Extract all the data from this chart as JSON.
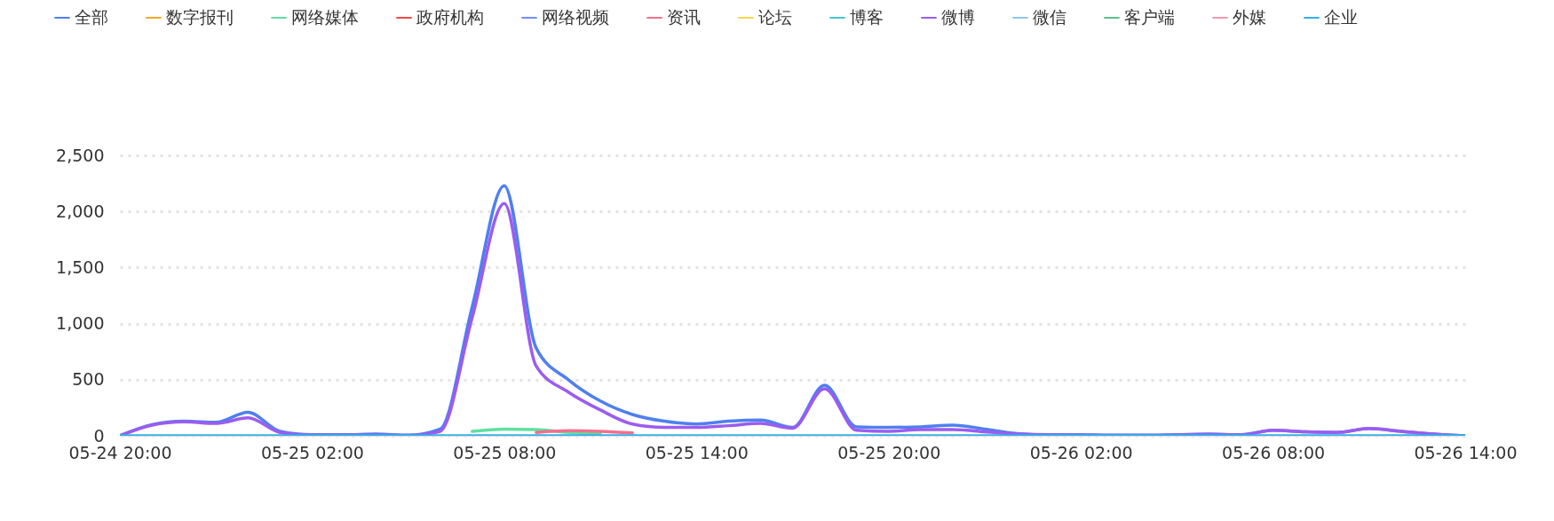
{
  "chart_data": {
    "type": "line",
    "categories": [
      "05-24 20:00",
      null,
      null,
      null,
      null,
      null,
      "05-25 02:00",
      null,
      null,
      null,
      null,
      null,
      "05-25 08:00",
      null,
      null,
      null,
      null,
      null,
      "05-25 14:00",
      null,
      null,
      null,
      null,
      null,
      "05-25 20:00",
      null,
      null,
      null,
      null,
      null,
      "05-26 02:00",
      null,
      null,
      null,
      null,
      null,
      "05-26 08:00",
      null,
      null,
      null,
      null,
      null,
      "05-26 14:00"
    ],
    "ylim": [
      0,
      2500
    ],
    "yticks": [
      0,
      500,
      {
        "value": 1000,
        "label": "1,000"
      },
      {
        "value": 1500,
        "label": "1,500"
      },
      {
        "value": 2000,
        "label": "2,000"
      },
      {
        "value": 2500,
        "label": "2,500"
      }
    ],
    "grid": "y",
    "legend": "top",
    "marker": "none",
    "line_style": "solid",
    "series": [
      {
        "name": "全部",
        "color": "#4f7ff0",
        "values": [
          0,
          100,
          130,
          120,
          210,
          40,
          10,
          10,
          15,
          5,
          60,
          1150,
          2230,
          780,
          500,
          310,
          190,
          130,
          105,
          130,
          140,
          75,
          450,
          80,
          75,
          80,
          95,
          60,
          20,
          10,
          10,
          5,
          5,
          10,
          15,
          10,
          50,
          35,
          30,
          65,
          40,
          15,
          0
        ]
      },
      {
        "name": "数字报刊",
        "color": "#f5a623",
        "values": [
          null,
          null,
          null,
          null,
          null,
          null,
          null,
          null,
          null,
          null,
          null,
          null,
          null,
          null,
          null,
          null,
          null,
          null,
          null,
          null,
          null,
          null,
          null,
          null,
          null,
          null,
          null,
          null,
          null,
          null,
          null,
          null,
          null,
          null,
          null,
          null,
          null,
          null,
          null,
          null,
          null,
          null,
          null
        ]
      },
      {
        "name": "网络媒体",
        "color": "#5ee0a0",
        "values": [
          null,
          null,
          null,
          null,
          null,
          null,
          null,
          null,
          null,
          null,
          null,
          40,
          60,
          55,
          30,
          20,
          null,
          null,
          null,
          null,
          null,
          null,
          null,
          null,
          null,
          null,
          null,
          null,
          null,
          null,
          null,
          null,
          null,
          null,
          null,
          null,
          null,
          null,
          null,
          null,
          null,
          null,
          null
        ]
      },
      {
        "name": "政府机构",
        "color": "#f04848",
        "values": [
          null,
          null,
          null,
          null,
          null,
          null,
          null,
          null,
          null,
          null,
          null,
          null,
          null,
          null,
          null,
          null,
          null,
          null,
          null,
          null,
          null,
          null,
          null,
          null,
          null,
          null,
          null,
          null,
          null,
          null,
          null,
          null,
          null,
          null,
          null,
          null,
          null,
          null,
          null,
          null,
          null,
          null,
          null
        ]
      },
      {
        "name": "网络视频",
        "color": "#6f8ff6",
        "values": [
          null,
          null,
          null,
          null,
          null,
          null,
          null,
          null,
          null,
          null,
          null,
          null,
          null,
          null,
          null,
          null,
          null,
          null,
          null,
          null,
          null,
          null,
          null,
          null,
          null,
          null,
          null,
          null,
          null,
          null,
          null,
          null,
          null,
          null,
          null,
          null,
          null,
          null,
          null,
          null,
          null,
          null,
          null
        ]
      },
      {
        "name": "资讯",
        "color": "#f06f8f",
        "values": [
          null,
          null,
          null,
          null,
          null,
          null,
          null,
          null,
          null,
          null,
          null,
          null,
          null,
          30,
          45,
          40,
          25,
          null,
          null,
          null,
          null,
          null,
          null,
          null,
          null,
          null,
          null,
          null,
          null,
          null,
          null,
          null,
          null,
          null,
          null,
          null,
          null,
          null,
          null,
          null,
          null,
          null,
          null
        ]
      },
      {
        "name": "论坛",
        "color": "#f8d84a",
        "values": [
          null,
          null,
          null,
          null,
          null,
          null,
          null,
          null,
          null,
          null,
          null,
          null,
          null,
          null,
          null,
          null,
          null,
          null,
          null,
          null,
          null,
          null,
          null,
          null,
          null,
          null,
          null,
          null,
          null,
          null,
          null,
          null,
          null,
          null,
          null,
          null,
          null,
          null,
          null,
          null,
          null,
          null,
          null
        ]
      },
      {
        "name": "博客",
        "color": "#40c8c8",
        "values": [
          null,
          null,
          null,
          null,
          null,
          null,
          null,
          null,
          null,
          null,
          null,
          null,
          null,
          null,
          null,
          null,
          null,
          null,
          null,
          null,
          null,
          null,
          null,
          null,
          null,
          null,
          null,
          null,
          null,
          null,
          null,
          null,
          null,
          null,
          null,
          null,
          null,
          null,
          null,
          null,
          null,
          null,
          null
        ]
      },
      {
        "name": "微博",
        "color": "#9b5cf0",
        "values": [
          0,
          95,
          125,
          110,
          160,
          30,
          5,
          5,
          5,
          3,
          40,
          1055,
          2070,
          620,
          390,
          230,
          105,
          75,
          75,
          90,
          110,
          68,
          420,
          50,
          40,
          55,
          55,
          35,
          15,
          8,
          5,
          3,
          3,
          8,
          12,
          8,
          50,
          35,
          30,
          65,
          40,
          15,
          0
        ]
      },
      {
        "name": "微信",
        "color": "#8ec5f5",
        "values": [
          null,
          null,
          null,
          null,
          null,
          null,
          null,
          null,
          null,
          null,
          null,
          null,
          null,
          null,
          null,
          null,
          null,
          null,
          null,
          null,
          null,
          null,
          null,
          null,
          null,
          null,
          null,
          null,
          null,
          null,
          null,
          null,
          null,
          null,
          null,
          null,
          null,
          null,
          null,
          null,
          null,
          null,
          null
        ]
      },
      {
        "name": "客户端",
        "color": "#5ac090",
        "values": [
          null,
          null,
          null,
          null,
          null,
          null,
          null,
          null,
          null,
          null,
          null,
          null,
          null,
          null,
          null,
          null,
          null,
          null,
          null,
          null,
          null,
          null,
          null,
          null,
          null,
          null,
          null,
          null,
          null,
          null,
          null,
          null,
          null,
          null,
          null,
          null,
          null,
          null,
          null,
          null,
          null,
          null,
          null
        ]
      },
      {
        "name": "外媒",
        "color": "#f49bb0",
        "values": [
          null,
          null,
          null,
          null,
          null,
          null,
          null,
          null,
          null,
          null,
          null,
          null,
          null,
          null,
          null,
          null,
          null,
          null,
          null,
          null,
          null,
          null,
          null,
          null,
          null,
          null,
          null,
          null,
          null,
          null,
          null,
          null,
          null,
          null,
          null,
          null,
          null,
          null,
          null,
          null,
          null,
          null,
          null
        ]
      },
      {
        "name": "企业",
        "color": "#30b0e8",
        "values": [
          0,
          0,
          0,
          0,
          0,
          0,
          0,
          0,
          0,
          0,
          0,
          0,
          0,
          0,
          0,
          0,
          0,
          0,
          0,
          0,
          0,
          0,
          0,
          0,
          0,
          0,
          0,
          0,
          0,
          0,
          0,
          0,
          0,
          0,
          0,
          0,
          0,
          0,
          0,
          0,
          0,
          0,
          0
        ]
      }
    ]
  }
}
